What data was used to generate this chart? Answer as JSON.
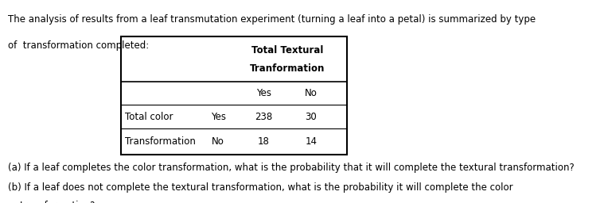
{
  "intro_text_line1": "The analysis of results from a leaf transmutation experiment (turning a leaf into a petal) is summarized by type",
  "intro_text_line2": "of  transformation completed:",
  "header_line1": "Total Textural",
  "header_line2": "Tranformation",
  "col_yes": "Yes",
  "col_no": "No",
  "row1_label1": "Total color",
  "row1_label2": "Yes",
  "row1_val1": "238",
  "row1_val2": "30",
  "row2_label1": "Transformation",
  "row2_label2": "No",
  "row2_val1": "18",
  "row2_val2": "14",
  "question_a": "(a) If a leaf completes the color transformation, what is the probability that it will complete the textural transformation?",
  "question_b1": "(b) If a leaf does not complete the textural transformation, what is the probability it will complete the color",
  "question_b2": "    transformation?",
  "bg_color": "#ffffff",
  "text_color": "#000000",
  "font_size": 8.5,
  "table_font_size": 8.5,
  "fig_width": 7.59,
  "fig_height": 2.56,
  "dpi": 100
}
